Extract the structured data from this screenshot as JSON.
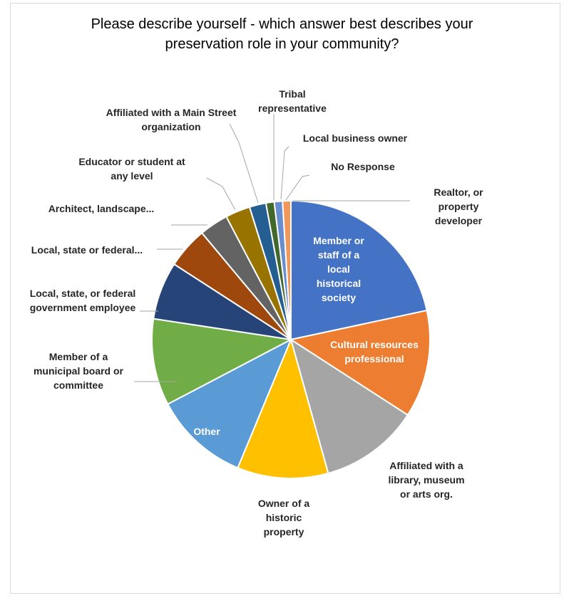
{
  "chart_data": {
    "type": "pie",
    "title_lines": [
      "Please describe yourself - which answer best describes your",
      "preservation role in your community?"
    ],
    "slices": [
      {
        "label_lines": [
          "Member or",
          "staff of a",
          "local",
          "historical",
          "society"
        ],
        "value": 22.5,
        "color": "#4472C4",
        "label_position": "inside"
      },
      {
        "label_lines": [
          "Cultural resources",
          "professional"
        ],
        "value": 13.0,
        "color": "#ED7D31",
        "label_position": "inside"
      },
      {
        "label_lines": [
          "Affiliated with a",
          "library, museum",
          "or arts org."
        ],
        "value": 12.0,
        "color": "#A5A5A5",
        "label_position": "outside"
      },
      {
        "label_lines": [
          "Owner of a",
          "historic",
          "property"
        ],
        "value": 11.0,
        "color": "#FFC000",
        "label_position": "outside"
      },
      {
        "label_lines": [
          "Other"
        ],
        "value": 11.5,
        "color": "#5B9BD5",
        "label_position": "inside"
      },
      {
        "label_lines": [
          "Member of a",
          "municipal board or",
          "committee"
        ],
        "value": 10.5,
        "color": "#70AD47",
        "label_position": "outside"
      },
      {
        "label_lines": [
          "Local, state, or federal",
          "government employee"
        ],
        "value": 7.0,
        "color": "#264478",
        "label_position": "outside"
      },
      {
        "label_lines": [
          "Local, state or federal..."
        ],
        "value": 5.0,
        "color": "#9E480E",
        "label_position": "outside"
      },
      {
        "label_lines": [
          "Architect, landscape..."
        ],
        "value": 3.5,
        "color": "#636363",
        "label_position": "outside"
      },
      {
        "label_lines": [
          "Educator or student at",
          "any level"
        ],
        "value": 3.0,
        "color": "#997300",
        "label_position": "outside"
      },
      {
        "label_lines": [
          "Affiliated  with a Main Street",
          "organization"
        ],
        "value": 2.0,
        "color": "#255E91",
        "label_position": "outside"
      },
      {
        "label_lines": [
          "Tribal",
          "representative"
        ],
        "value": 1.0,
        "color": "#43682B",
        "label_position": "outside"
      },
      {
        "label_lines": [
          "Local business owner"
        ],
        "value": 1.0,
        "color": "#698ED0",
        "label_position": "outside"
      },
      {
        "label_lines": [
          "No Response"
        ],
        "value": 1.0,
        "color": "#F1975A",
        "label_position": "outside"
      },
      {
        "label_lines": [
          "Realtor, or",
          "property",
          "developer"
        ],
        "value": 0.0,
        "color": "#B7B7B7",
        "label_position": "outside"
      }
    ],
    "legend": "none"
  }
}
